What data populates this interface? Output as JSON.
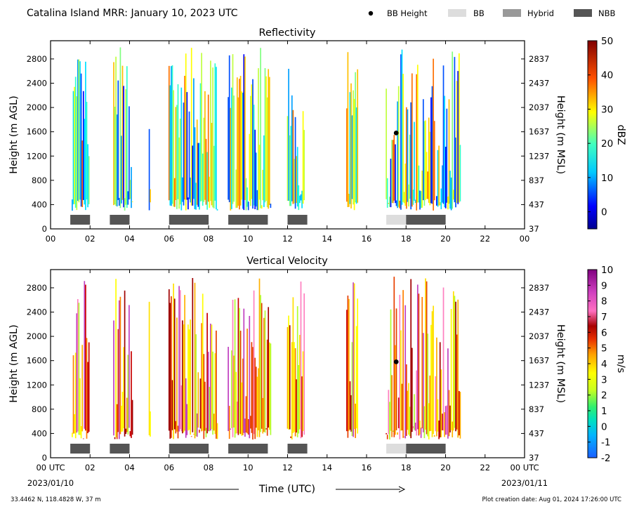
{
  "header": {
    "title": "Catalina Island MRR:  January 10, 2023 UTC",
    "legend": {
      "bb_height": "BB Height",
      "bb": "BB",
      "hybrid": "Hybrid",
      "nbb": "NBB"
    },
    "legend_colors": {
      "bb_height": "#000000",
      "bb": "#dddddd",
      "hybrid": "#999999",
      "nbb": "#555555"
    }
  },
  "footer": {
    "location": "33.4462 N, 118.4828 W, 37 m",
    "creation_date": "Plot creation date: Aug 01, 2024 17:26:00 UTC",
    "xlabel": "Time (UTC)",
    "start_date": "2023/01/10",
    "end_date": "2023/01/11"
  },
  "axes": {
    "x_ticks_top": [
      "00",
      "02",
      "04",
      "06",
      "08",
      "10",
      "12",
      "14",
      "16",
      "18",
      "20",
      "22",
      "00"
    ],
    "x_ticks_bottom": [
      "00 UTC",
      "02",
      "04",
      "06",
      "08",
      "10",
      "12",
      "14",
      "16",
      "18",
      "20",
      "22",
      "00 UTC"
    ],
    "y_ticks_left": [
      "0",
      "400",
      "800",
      "1200",
      "1600",
      "2000",
      "2400",
      "2800"
    ],
    "y_ticks_right": [
      "37",
      "437",
      "837",
      "1237",
      "1637",
      "2037",
      "2437",
      "2837"
    ],
    "ylabel_left": "Height (m AGL)",
    "ylabel_right": "Height (m MSL)"
  },
  "chart_data": [
    {
      "type": "heatmap",
      "title": "Reflectivity",
      "xlabel": "",
      "ylabel": "Height (m AGL)",
      "xlim": [
        0,
        24
      ],
      "ylim": [
        0,
        3100
      ],
      "colorbar": {
        "label": "dBZ",
        "range": [
          -5,
          50
        ],
        "ticks": [
          "0",
          "10",
          "20",
          "30",
          "40",
          "50"
        ]
      },
      "echo_intervals_utc": [
        [
          1.1,
          2.0
        ],
        [
          3.2,
          4.2
        ],
        [
          5.0,
          5.1
        ],
        [
          6.0,
          8.5
        ],
        [
          9.0,
          11.2
        ],
        [
          12.0,
          12.9
        ],
        [
          15.0,
          15.6
        ],
        [
          17.0,
          20.8
        ]
      ],
      "bb_height_point": {
        "x": 17.5,
        "y": 1580
      },
      "bands": [
        {
          "type": "NBB",
          "start": 1.0,
          "end": 2.0
        },
        {
          "type": "NBB",
          "start": 3.0,
          "end": 4.0
        },
        {
          "type": "NBB",
          "start": 6.0,
          "end": 8.0
        },
        {
          "type": "NBB",
          "start": 9.0,
          "end": 11.0
        },
        {
          "type": "NBB",
          "start": 12.0,
          "end": 13.0
        },
        {
          "type": "BB",
          "start": 17.0,
          "end": 18.0
        },
        {
          "type": "NBB",
          "start": 18.0,
          "end": 20.0
        }
      ]
    },
    {
      "type": "heatmap",
      "title": "Vertical Velocity",
      "xlabel": "Time (UTC)",
      "ylabel": "Height (m AGL)",
      "xlim": [
        0,
        24
      ],
      "ylim": [
        0,
        3100
      ],
      "colorbar": {
        "label": "m/s",
        "range": [
          -2,
          10
        ],
        "ticks": [
          "-2",
          "-1",
          "0",
          "1",
          "2",
          "3",
          "4",
          "5",
          "6",
          "7",
          "8",
          "9",
          "10"
        ]
      },
      "echo_intervals_utc": [
        [
          1.1,
          2.0
        ],
        [
          3.2,
          4.2
        ],
        [
          5.0,
          5.1
        ],
        [
          6.0,
          8.5
        ],
        [
          9.0,
          11.2
        ],
        [
          12.0,
          12.9
        ],
        [
          15.0,
          15.6
        ],
        [
          17.0,
          20.8
        ]
      ],
      "bb_height_point": {
        "x": 17.5,
        "y": 1580
      },
      "bands": [
        {
          "type": "NBB",
          "start": 1.0,
          "end": 2.0
        },
        {
          "type": "NBB",
          "start": 3.0,
          "end": 4.0
        },
        {
          "type": "NBB",
          "start": 6.0,
          "end": 8.0
        },
        {
          "type": "NBB",
          "start": 9.0,
          "end": 11.0
        },
        {
          "type": "NBB",
          "start": 12.0,
          "end": 13.0
        },
        {
          "type": "BB",
          "start": 17.0,
          "end": 18.0
        },
        {
          "type": "NBB",
          "start": 18.0,
          "end": 20.0
        }
      ]
    }
  ]
}
